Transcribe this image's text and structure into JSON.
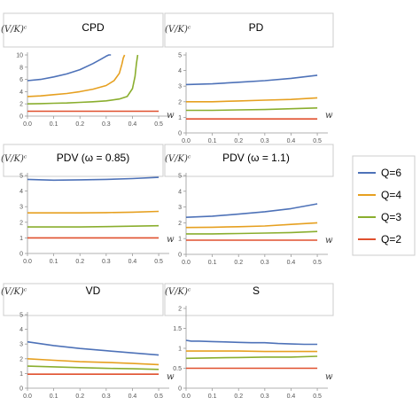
{
  "chart_data": [
    {
      "type": "line",
      "title": "CPD",
      "ylabel": "(V/K)ᶜ",
      "xlabel": "w",
      "xlim": [
        0,
        0.52
      ],
      "ylim": [
        0,
        10
      ],
      "xticks": [
        "0.0",
        "0.1",
        "0.2",
        "0.3",
        "0.4",
        "0.5"
      ],
      "yticks": [
        "0",
        "2",
        "4",
        "6",
        "8",
        "10"
      ],
      "series": [
        {
          "name": "Q=6",
          "x": [
            0,
            0.05,
            0.1,
            0.15,
            0.2,
            0.25,
            0.28,
            0.3,
            0.31,
            0.315,
            0.318
          ],
          "y": [
            5.8,
            6.0,
            6.4,
            6.9,
            7.6,
            8.6,
            9.3,
            9.8,
            10.0,
            10.0,
            10.0
          ]
        },
        {
          "name": "Q=4",
          "x": [
            0,
            0.05,
            0.1,
            0.15,
            0.2,
            0.25,
            0.3,
            0.33,
            0.35,
            0.36,
            0.365,
            0.37
          ],
          "y": [
            3.2,
            3.3,
            3.5,
            3.7,
            4.0,
            4.4,
            5.0,
            5.8,
            7.0,
            8.5,
            9.5,
            10.0
          ]
        },
        {
          "name": "Q=3",
          "x": [
            0,
            0.05,
            0.1,
            0.15,
            0.2,
            0.25,
            0.3,
            0.35,
            0.38,
            0.4,
            0.41,
            0.415,
            0.42
          ],
          "y": [
            2.0,
            2.05,
            2.1,
            2.15,
            2.25,
            2.35,
            2.5,
            2.8,
            3.2,
            4.5,
            6.5,
            8.5,
            10.0
          ]
        },
        {
          "name": "Q=2",
          "x": [
            0,
            0.5
          ],
          "y": [
            0.8,
            0.8
          ]
        }
      ]
    },
    {
      "type": "line",
      "title": "PD",
      "ylabel": "(V/K)ᶜ",
      "xlabel": "w",
      "xlim": [
        0,
        0.52
      ],
      "ylim": [
        0,
        5
      ],
      "xticks": [
        "0.0",
        "0.1",
        "0.2",
        "0.3",
        "0.4",
        "0.5"
      ],
      "yticks": [
        "0",
        "1",
        "2",
        "3",
        "4",
        "5"
      ],
      "series": [
        {
          "name": "Q=6",
          "x": [
            0,
            0.1,
            0.2,
            0.3,
            0.4,
            0.5
          ],
          "y": [
            3.1,
            3.15,
            3.25,
            3.35,
            3.5,
            3.7
          ]
        },
        {
          "name": "Q=4",
          "x": [
            0,
            0.1,
            0.2,
            0.3,
            0.4,
            0.5
          ],
          "y": [
            2.0,
            2.0,
            2.05,
            2.1,
            2.15,
            2.25
          ]
        },
        {
          "name": "Q=3",
          "x": [
            0,
            0.1,
            0.2,
            0.3,
            0.4,
            0.5
          ],
          "y": [
            1.45,
            1.45,
            1.48,
            1.5,
            1.55,
            1.6
          ]
        },
        {
          "name": "Q=2",
          "x": [
            0,
            0.5
          ],
          "y": [
            0.9,
            0.9
          ]
        }
      ]
    },
    {
      "type": "line",
      "title": "PDV (ω = 0.85)",
      "ylabel": "(V/K)ᶜ",
      "xlabel": "w",
      "xlim": [
        0,
        0.52
      ],
      "ylim": [
        0,
        5
      ],
      "xticks": [
        "0.0",
        "0.1",
        "0.2",
        "0.3",
        "0.4",
        "0.5"
      ],
      "yticks": [
        "0",
        "1",
        "2",
        "3",
        "4",
        "5"
      ],
      "series": [
        {
          "name": "Q=6",
          "x": [
            0,
            0.1,
            0.2,
            0.3,
            0.4,
            0.5
          ],
          "y": [
            4.75,
            4.7,
            4.72,
            4.75,
            4.8,
            4.88
          ]
        },
        {
          "name": "Q=4",
          "x": [
            0,
            0.1,
            0.2,
            0.3,
            0.4,
            0.5
          ],
          "y": [
            2.6,
            2.6,
            2.6,
            2.62,
            2.65,
            2.7
          ]
        },
        {
          "name": "Q=3",
          "x": [
            0,
            0.1,
            0.2,
            0.3,
            0.4,
            0.5
          ],
          "y": [
            1.7,
            1.7,
            1.7,
            1.72,
            1.75,
            1.78
          ]
        },
        {
          "name": "Q=2",
          "x": [
            0,
            0.5
          ],
          "y": [
            1.0,
            1.0
          ]
        }
      ]
    },
    {
      "type": "line",
      "title": "PDV (ω = 1.1)",
      "ylabel": "(V/K)ᶜ",
      "xlabel": "w",
      "xlim": [
        0,
        0.52
      ],
      "ylim": [
        0,
        5
      ],
      "xticks": [
        "0.0",
        "0.1",
        "0.2",
        "0.3",
        "0.4",
        "0.5"
      ],
      "yticks": [
        "0",
        "1",
        "2",
        "3",
        "4",
        "5"
      ],
      "series": [
        {
          "name": "Q=6",
          "x": [
            0,
            0.1,
            0.2,
            0.3,
            0.4,
            0.5
          ],
          "y": [
            2.35,
            2.42,
            2.55,
            2.7,
            2.9,
            3.2
          ]
        },
        {
          "name": "Q=4",
          "x": [
            0,
            0.1,
            0.2,
            0.3,
            0.4,
            0.5
          ],
          "y": [
            1.7,
            1.72,
            1.75,
            1.8,
            1.9,
            2.0
          ]
        },
        {
          "name": "Q=3",
          "x": [
            0,
            0.1,
            0.2,
            0.3,
            0.4,
            0.5
          ],
          "y": [
            1.3,
            1.3,
            1.32,
            1.35,
            1.38,
            1.45
          ]
        },
        {
          "name": "Q=2",
          "x": [
            0,
            0.5
          ],
          "y": [
            0.9,
            0.9
          ]
        }
      ]
    },
    {
      "type": "line",
      "title": "VD",
      "ylabel": "(V/K)ᶜ",
      "xlabel": "w",
      "xlim": [
        0,
        0.52
      ],
      "ylim": [
        0,
        5
      ],
      "xticks": [
        "0.0",
        "0.1",
        "0.2",
        "0.3",
        "0.4",
        "0.5"
      ],
      "yticks": [
        "0",
        "1",
        "2",
        "3",
        "4",
        "5"
      ],
      "series": [
        {
          "name": "Q=6",
          "x": [
            0,
            0.1,
            0.2,
            0.3,
            0.4,
            0.5
          ],
          "y": [
            3.15,
            2.9,
            2.7,
            2.55,
            2.4,
            2.25
          ]
        },
        {
          "name": "Q=4",
          "x": [
            0,
            0.1,
            0.2,
            0.3,
            0.4,
            0.5
          ],
          "y": [
            2.0,
            1.9,
            1.8,
            1.75,
            1.68,
            1.6
          ]
        },
        {
          "name": "Q=3",
          "x": [
            0,
            0.1,
            0.2,
            0.3,
            0.4,
            0.5
          ],
          "y": [
            1.5,
            1.45,
            1.4,
            1.35,
            1.32,
            1.28
          ]
        },
        {
          "name": "Q=2",
          "x": [
            0,
            0.5
          ],
          "y": [
            0.95,
            0.95
          ]
        }
      ]
    },
    {
      "type": "line",
      "title": "S",
      "ylabel": "(V/K)ᶜ",
      "xlabel": "w",
      "xlim": [
        0,
        0.52
      ],
      "ylim": [
        0,
        2
      ],
      "xticks": [
        "0.0",
        "0.1",
        "0.2",
        "0.3",
        "0.4",
        "0.5"
      ],
      "yticks": [
        "0",
        "0.5",
        "1",
        "1.5",
        "2"
      ],
      "series": [
        {
          "name": "Q=6",
          "x": [
            0,
            0.02,
            0.05,
            0.1,
            0.15,
            0.2,
            0.25,
            0.3,
            0.35,
            0.4,
            0.45,
            0.5
          ],
          "y": [
            1.2,
            1.18,
            1.18,
            1.17,
            1.16,
            1.15,
            1.14,
            1.14,
            1.12,
            1.11,
            1.1,
            1.1
          ]
        },
        {
          "name": "Q=4",
          "x": [
            0,
            0.1,
            0.2,
            0.3,
            0.4,
            0.5
          ],
          "y": [
            0.93,
            0.93,
            0.93,
            0.92,
            0.92,
            0.92
          ]
        },
        {
          "name": "Q=3",
          "x": [
            0,
            0.1,
            0.2,
            0.3,
            0.4,
            0.5
          ],
          "y": [
            0.75,
            0.76,
            0.77,
            0.78,
            0.78,
            0.8
          ]
        },
        {
          "name": "Q=2",
          "x": [
            0,
            0.5
          ],
          "y": [
            0.5,
            0.5
          ]
        }
      ]
    }
  ],
  "legend": {
    "placement": "right",
    "entries": [
      {
        "label": "Q=6",
        "color": "#4e72b8"
      },
      {
        "label": "Q=4",
        "color": "#e6a020"
      },
      {
        "label": "Q=3",
        "color": "#8aae2e"
      },
      {
        "label": "Q=2",
        "color": "#e0502e"
      }
    ]
  },
  "colors": {
    "axis": "#999999",
    "title_box_border": "#cccccc"
  }
}
